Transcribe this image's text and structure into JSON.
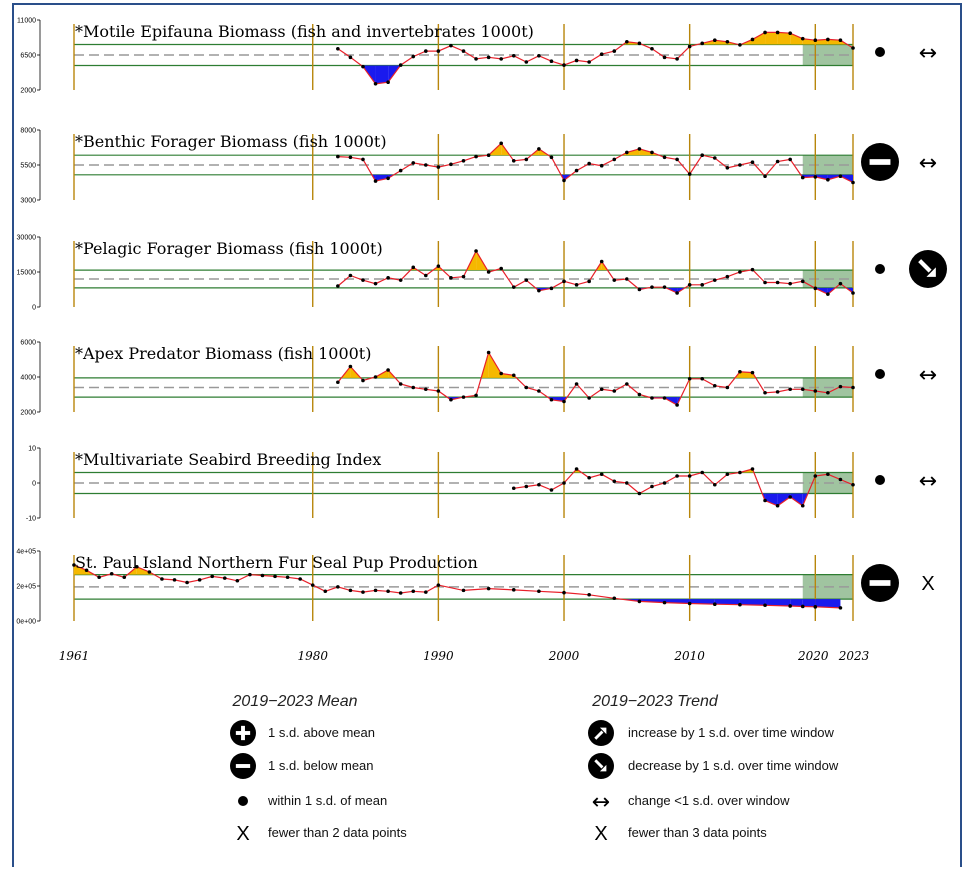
{
  "chart_data": {
    "type": "line",
    "x_axis": {
      "ticks": [
        1961,
        1980,
        1990,
        2000,
        2010,
        2020,
        2023
      ],
      "tick_labels": [
        "1961",
        "1980",
        "1990",
        "2000",
        "2010",
        "2020",
        "2023"
      ],
      "range": [
        1961,
        2023
      ]
    },
    "highlight_window": [
      2019,
      2023
    ],
    "colors": {
      "above": "#f5b800",
      "below": "#1a1aee",
      "line": "#e8202a",
      "bands": "#2e7d32",
      "window": "#8fba8f",
      "year_lines": "#b8860b"
    },
    "panels": [
      {
        "title": "*Motile Epifauna Biomass (fish and invertebrates 1000t)",
        "ylim": [
          2000,
          11000
        ],
        "yticks": [
          2000,
          6500,
          11000
        ],
        "ytick_labels": [
          "2000",
          "6500",
          "11000"
        ],
        "mean": 6500,
        "sd": 1350,
        "x": [
          1982,
          1983,
          1984,
          1985,
          1986,
          1987,
          1988,
          1989,
          1990,
          1991,
          1992,
          1993,
          1994,
          1995,
          1996,
          1997,
          1998,
          1999,
          2000,
          2001,
          2002,
          2003,
          2004,
          2005,
          2006,
          2007,
          2008,
          2009,
          2010,
          2011,
          2012,
          2013,
          2014,
          2015,
          2016,
          2017,
          2018,
          2019,
          2020,
          2021,
          2022,
          2023
        ],
        "values": [
          7300,
          6200,
          5000,
          2800,
          3000,
          5200,
          6300,
          7000,
          7000,
          7700,
          7000,
          6000,
          6200,
          6000,
          6400,
          5600,
          6400,
          5700,
          5200,
          5800,
          5600,
          6600,
          7000,
          8200,
          8000,
          7300,
          6200,
          6000,
          7600,
          8000,
          8400,
          8200,
          7800,
          8500,
          9400,
          9400,
          9300,
          8600,
          8400,
          8500,
          8400,
          7400
        ],
        "mean_symbol": "dot",
        "trend_symbol": "flat"
      },
      {
        "title": "*Benthic Forager Biomass (fish 1000t)",
        "ylim": [
          3000,
          8000
        ],
        "yticks": [
          3000,
          5500,
          8000
        ],
        "ytick_labels": [
          "3000",
          "5500",
          "8000"
        ],
        "mean": 5500,
        "sd": 700,
        "x": [
          1982,
          1983,
          1984,
          1985,
          1986,
          1987,
          1988,
          1989,
          1990,
          1991,
          1992,
          1993,
          1994,
          1995,
          1996,
          1997,
          1998,
          1999,
          2000,
          2001,
          2002,
          2003,
          2004,
          2005,
          2006,
          2007,
          2008,
          2009,
          2010,
          2011,
          2012,
          2013,
          2014,
          2015,
          2016,
          2017,
          2018,
          2019,
          2020,
          2021,
          2022,
          2023
        ],
        "values": [
          6100,
          6050,
          5900,
          4350,
          4550,
          5100,
          5650,
          5500,
          5350,
          5550,
          5800,
          6100,
          6200,
          7050,
          5800,
          5900,
          6650,
          6050,
          4400,
          5100,
          5600,
          5450,
          5900,
          6400,
          6650,
          6400,
          6050,
          5900,
          4850,
          6200,
          6000,
          5300,
          5500,
          5700,
          4700,
          5750,
          5900,
          4600,
          4650,
          4450,
          4700,
          4250
        ],
        "mean_symbol": "minus",
        "trend_symbol": "flat"
      },
      {
        "title": "*Pelagic Forager Biomass (fish 1000t)",
        "ylim": [
          0,
          30000
        ],
        "yticks": [
          0,
          15000,
          30000
        ],
        "ytick_labels": [
          "0",
          "15000",
          "30000"
        ],
        "mean": 12000,
        "sd": 3800,
        "x": [
          1982,
          1983,
          1984,
          1985,
          1986,
          1987,
          1988,
          1989,
          1990,
          1991,
          1992,
          1993,
          1994,
          1995,
          1996,
          1997,
          1998,
          1999,
          2000,
          2001,
          2002,
          2003,
          2004,
          2005,
          2006,
          2007,
          2008,
          2009,
          2010,
          2011,
          2012,
          2013,
          2014,
          2015,
          2016,
          2017,
          2018,
          2019,
          2020,
          2021,
          2022,
          2023
        ],
        "values": [
          9000,
          13500,
          11500,
          10000,
          12500,
          11500,
          17000,
          13500,
          17500,
          12500,
          13000,
          24000,
          15000,
          16500,
          8500,
          11500,
          7000,
          8000,
          11000,
          9500,
          11000,
          19500,
          11500,
          12000,
          7500,
          8500,
          8500,
          6000,
          9500,
          9500,
          11500,
          13000,
          15000,
          16000,
          10500,
          10500,
          10000,
          11000,
          8000,
          5500,
          10000,
          6000
        ],
        "mean_symbol": "dot",
        "trend_symbol": "decrease"
      },
      {
        "title": "*Apex Predator Biomass (fish 1000t)",
        "ylim": [
          2000,
          6000
        ],
        "yticks": [
          2000,
          4000,
          6000
        ],
        "ytick_labels": [
          "2000",
          "4000",
          "6000"
        ],
        "mean": 3400,
        "sd": 550,
        "x": [
          1982,
          1983,
          1984,
          1985,
          1986,
          1987,
          1988,
          1989,
          1990,
          1991,
          1992,
          1993,
          1994,
          1995,
          1996,
          1997,
          1998,
          1999,
          2000,
          2001,
          2002,
          2003,
          2004,
          2005,
          2006,
          2007,
          2008,
          2009,
          2010,
          2011,
          2012,
          2013,
          2014,
          2015,
          2016,
          2017,
          2018,
          2019,
          2020,
          2021,
          2022,
          2023
        ],
        "values": [
          3700,
          4600,
          3800,
          4000,
          4400,
          3600,
          3400,
          3300,
          3200,
          2700,
          2850,
          2950,
          5400,
          4200,
          4100,
          3400,
          3200,
          2700,
          2600,
          3600,
          2800,
          3300,
          3200,
          3600,
          3000,
          2800,
          2800,
          2400,
          3900,
          3900,
          3500,
          3400,
          4300,
          4250,
          3100,
          3150,
          3300,
          3300,
          3200,
          3100,
          3450,
          3400
        ],
        "mean_symbol": "dot",
        "trend_symbol": "flat"
      },
      {
        "title": "*Multivariate Seabird Breeding Index",
        "ylim": [
          -10,
          10
        ],
        "yticks": [
          -10,
          0,
          10
        ],
        "ytick_labels": [
          "-10",
          "0",
          "10"
        ],
        "mean": 0,
        "sd": 3,
        "x": [
          1996,
          1997,
          1998,
          1999,
          2000,
          2001,
          2002,
          2003,
          2004,
          2005,
          2006,
          2007,
          2008,
          2009,
          2010,
          2011,
          2012,
          2013,
          2014,
          2015,
          2016,
          2017,
          2018,
          2019,
          2020,
          2021,
          2022,
          2023
        ],
        "values": [
          -1.5,
          -1,
          -0.5,
          -2,
          0,
          4,
          1.5,
          2.5,
          0.5,
          0,
          -3,
          -1,
          0,
          2,
          2,
          3,
          -0.5,
          2.5,
          3,
          4,
          -5,
          -6.5,
          -4,
          -6.5,
          2,
          2.5,
          1,
          -0.5
        ],
        "mean_symbol": "dot",
        "trend_symbol": "flat"
      },
      {
        "title": "St. Paul Island Northern Fur Seal Pup Production",
        "ylim": [
          0,
          400000
        ],
        "yticks": [
          0,
          200000,
          400000
        ],
        "ytick_labels": [
          "0e+00",
          "2e+05",
          "4e+05"
        ],
        "mean": 195000,
        "sd": 70000,
        "x": [
          1961,
          1962,
          1963,
          1964,
          1965,
          1966,
          1967,
          1968,
          1969,
          1970,
          1971,
          1972,
          1973,
          1974,
          1975,
          1976,
          1977,
          1978,
          1979,
          1980,
          1981,
          1982,
          1983,
          1984,
          1985,
          1986,
          1987,
          1988,
          1989,
          1990,
          1992,
          1994,
          1996,
          1998,
          2000,
          2002,
          2004,
          2006,
          2008,
          2010,
          2012,
          2014,
          2016,
          2018,
          2019,
          2020,
          2022
        ],
        "values": [
          320000,
          290000,
          250000,
          270000,
          250000,
          310000,
          280000,
          240000,
          235000,
          220000,
          235000,
          255000,
          245000,
          230000,
          265000,
          260000,
          255000,
          250000,
          240000,
          205000,
          170000,
          195000,
          175000,
          165000,
          175000,
          170000,
          160000,
          170000,
          165000,
          205000,
          175000,
          185000,
          178000,
          170000,
          162000,
          150000,
          130000,
          112000,
          105000,
          100000,
          96000,
          93000,
          90000,
          86000,
          83000,
          81000,
          75000
        ],
        "mean_symbol": "minus",
        "trend_symbol": "x"
      }
    ],
    "legend": {
      "mean_heading": "2019−2023 Mean",
      "trend_heading": "2019−2023 Trend",
      "mean_items": [
        {
          "symbol": "plus",
          "label": "1 s.d. above mean"
        },
        {
          "symbol": "minus",
          "label": "1 s.d. below mean"
        },
        {
          "symbol": "dot",
          "label": "within 1 s.d. of mean"
        },
        {
          "symbol": "x",
          "label": "fewer than 2 data points"
        }
      ],
      "trend_items": [
        {
          "symbol": "increase",
          "label": "increase by 1 s.d. over time window"
        },
        {
          "symbol": "decrease",
          "label": "decrease by 1 s.d. over time window"
        },
        {
          "symbol": "flat",
          "label": "change <1 s.d. over window"
        },
        {
          "symbol": "x",
          "label": "fewer than 3 data points"
        }
      ]
    }
  }
}
